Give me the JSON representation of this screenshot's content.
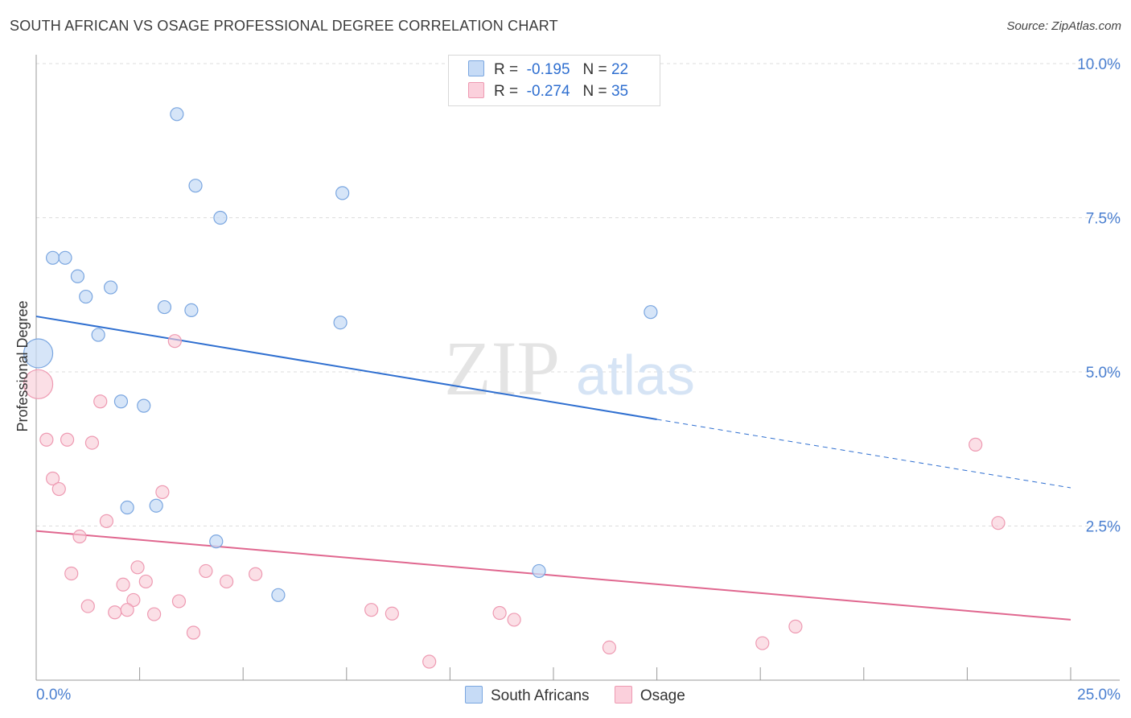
{
  "header": {
    "title": "SOUTH AFRICAN VS OSAGE PROFESSIONAL DEGREE CORRELATION CHART",
    "source": "Source: ZipAtlas.com"
  },
  "watermark": {
    "zip": "ZIP",
    "atlas": "atlas"
  },
  "legend": {
    "rows": [
      {
        "r_label": "R =",
        "r_value": "-0.195",
        "n_label": "N =",
        "n_value": "22",
        "color": "#b8d2f3"
      },
      {
        "r_label": "R =",
        "r_value": "-0.274",
        "n_label": "N =",
        "n_value": "35",
        "color": "#f9c4d3"
      }
    ]
  },
  "bottom_legend": {
    "items": [
      {
        "label": "South Africans",
        "color": "#b8d2f3"
      },
      {
        "label": "Osage",
        "color": "#f9c4d3"
      }
    ]
  },
  "chart_data": {
    "type": "scatter",
    "title": "SOUTH AFRICAN VS OSAGE PROFESSIONAL DEGREE CORRELATION CHART",
    "xlabel": "",
    "ylabel": "Professional Degree",
    "xlim": [
      0,
      25
    ],
    "ylim": [
      0,
      10
    ],
    "x_tick_labels": [
      "0.0%",
      "25.0%"
    ],
    "y_ticks": [
      2.5,
      5.0,
      7.5,
      10.0
    ],
    "y_tick_labels": [
      "2.5%",
      "5.0%",
      "7.5%",
      "10.0%"
    ],
    "series": [
      {
        "name": "South Africans",
        "color": "#4a86d8",
        "r": -0.195,
        "n": 22,
        "trend": {
          "x0": 0,
          "y0": 5.9,
          "x_solid_end": 15.0,
          "y_solid_end": 4.23,
          "x1": 25,
          "y1": 3.12
        },
        "points": [
          {
            "x": 0.05,
            "y": 5.3,
            "size": "large"
          },
          {
            "x": 0.4,
            "y": 6.85
          },
          {
            "x": 0.7,
            "y": 6.85
          },
          {
            "x": 1.0,
            "y": 6.55
          },
          {
            "x": 1.2,
            "y": 6.22
          },
          {
            "x": 1.8,
            "y": 6.37
          },
          {
            "x": 1.5,
            "y": 5.6
          },
          {
            "x": 3.4,
            "y": 9.18
          },
          {
            "x": 3.85,
            "y": 8.02
          },
          {
            "x": 4.45,
            "y": 7.5
          },
          {
            "x": 7.4,
            "y": 7.9
          },
          {
            "x": 3.1,
            "y": 6.05
          },
          {
            "x": 3.75,
            "y": 6.0
          },
          {
            "x": 7.35,
            "y": 5.8
          },
          {
            "x": 14.85,
            "y": 5.97
          },
          {
            "x": 2.05,
            "y": 4.52
          },
          {
            "x": 2.6,
            "y": 4.45
          },
          {
            "x": 2.2,
            "y": 2.8
          },
          {
            "x": 2.9,
            "y": 2.83
          },
          {
            "x": 4.35,
            "y": 2.25
          },
          {
            "x": 5.85,
            "y": 1.38
          },
          {
            "x": 12.15,
            "y": 1.77
          }
        ]
      },
      {
        "name": "Osage",
        "color": "#e0678f",
        "r": -0.274,
        "n": 35,
        "trend": {
          "x0": 0,
          "y0": 2.42,
          "x1": 25,
          "y1": 0.98
        },
        "points": [
          {
            "x": 0.05,
            "y": 4.8,
            "size": "large"
          },
          {
            "x": 3.35,
            "y": 5.5
          },
          {
            "x": 1.55,
            "y": 4.52
          },
          {
            "x": 0.25,
            "y": 3.9
          },
          {
            "x": 0.75,
            "y": 3.9
          },
          {
            "x": 1.35,
            "y": 3.85
          },
          {
            "x": 0.4,
            "y": 3.27
          },
          {
            "x": 0.55,
            "y": 3.1
          },
          {
            "x": 3.05,
            "y": 3.05
          },
          {
            "x": 1.7,
            "y": 2.58
          },
          {
            "x": 1.05,
            "y": 2.33
          },
          {
            "x": 0.85,
            "y": 1.73
          },
          {
            "x": 2.45,
            "y": 1.83
          },
          {
            "x": 4.1,
            "y": 1.77
          },
          {
            "x": 4.6,
            "y": 1.6
          },
          {
            "x": 5.3,
            "y": 1.72
          },
          {
            "x": 2.1,
            "y": 1.55
          },
          {
            "x": 2.65,
            "y": 1.6
          },
          {
            "x": 1.25,
            "y": 1.2
          },
          {
            "x": 2.35,
            "y": 1.3
          },
          {
            "x": 3.45,
            "y": 1.28
          },
          {
            "x": 1.9,
            "y": 1.1
          },
          {
            "x": 2.2,
            "y": 1.14
          },
          {
            "x": 2.85,
            "y": 1.07
          },
          {
            "x": 3.8,
            "y": 0.77
          },
          {
            "x": 8.1,
            "y": 1.14
          },
          {
            "x": 8.6,
            "y": 1.08
          },
          {
            "x": 11.2,
            "y": 1.09
          },
          {
            "x": 11.55,
            "y": 0.98
          },
          {
            "x": 9.5,
            "y": 0.3
          },
          {
            "x": 13.85,
            "y": 0.53
          },
          {
            "x": 17.55,
            "y": 0.6
          },
          {
            "x": 18.35,
            "y": 0.87
          },
          {
            "x": 22.7,
            "y": 3.82
          },
          {
            "x": 23.25,
            "y": 2.55
          }
        ]
      }
    ]
  }
}
